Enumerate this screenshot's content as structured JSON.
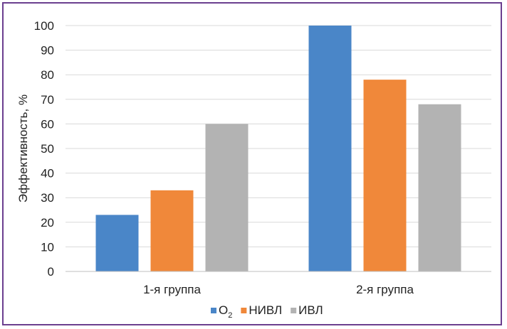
{
  "chart_data": {
    "type": "bar",
    "ylabel": "Эффективность, %",
    "ylim": [
      0,
      100
    ],
    "yticks": [
      0,
      10,
      20,
      30,
      40,
      50,
      60,
      70,
      80,
      90,
      100
    ],
    "categories": [
      "1-я группа",
      "2-я группа"
    ],
    "series": [
      {
        "name": "O",
        "name_sub": "2",
        "color": "#4a86c8",
        "values": [
          23,
          100
        ]
      },
      {
        "name": "НИВЛ",
        "color": "#f0883a",
        "values": [
          33,
          78
        ]
      },
      {
        "name": "ИВЛ",
        "color": "#b3b3b3",
        "values": [
          60,
          68
        ]
      }
    ],
    "grid": true,
    "legend_position": "bottom"
  }
}
